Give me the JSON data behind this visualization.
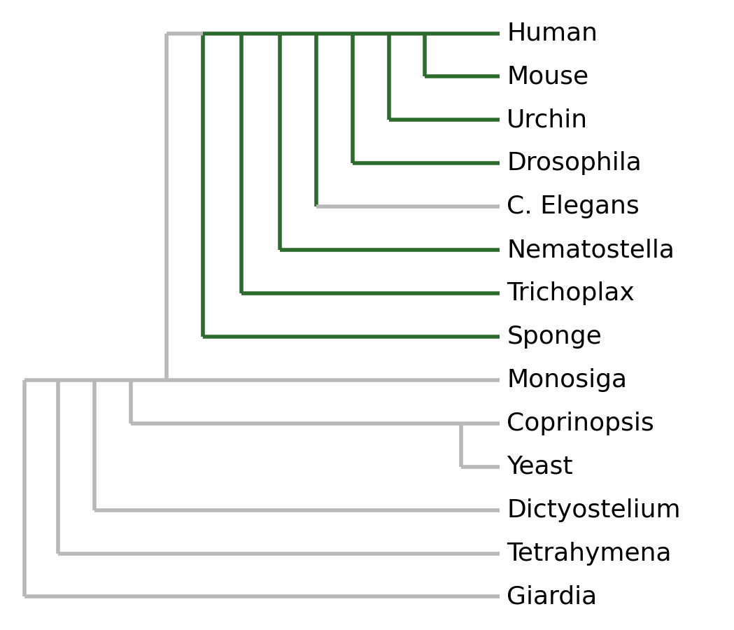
{
  "taxa": [
    "Human",
    "Mouse",
    "Urchin",
    "Drosophila",
    "C. Elegans",
    "Nematostella",
    "Trichoplax",
    "Sponge",
    "Monosiga",
    "Coprinopsis",
    "Yeast",
    "Dictyostelium",
    "Tetrahymena",
    "Giardia"
  ],
  "green_color": "#2d6a2d",
  "gray_color": "#b8b8b8",
  "background_color": "#ffffff",
  "label_fontsize": 26,
  "line_width": 4.0,
  "fig_width": 10.49,
  "fig_height": 9.0
}
